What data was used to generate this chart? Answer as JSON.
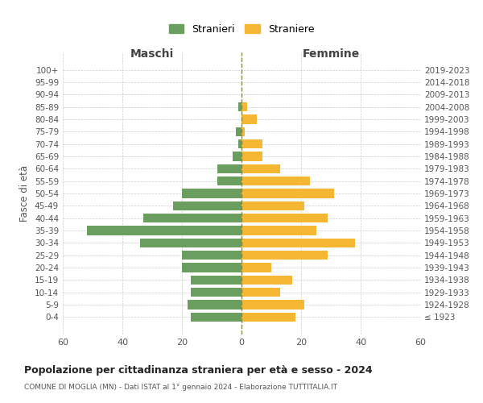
{
  "age_groups": [
    "100+",
    "95-99",
    "90-94",
    "85-89",
    "80-84",
    "75-79",
    "70-74",
    "65-69",
    "60-64",
    "55-59",
    "50-54",
    "45-49",
    "40-44",
    "35-39",
    "30-34",
    "25-29",
    "20-24",
    "15-19",
    "10-14",
    "5-9",
    "0-4"
  ],
  "birth_years": [
    "≤ 1923",
    "1924-1928",
    "1929-1933",
    "1934-1938",
    "1939-1943",
    "1944-1948",
    "1949-1953",
    "1954-1958",
    "1959-1963",
    "1964-1968",
    "1969-1973",
    "1974-1978",
    "1979-1983",
    "1984-1988",
    "1989-1993",
    "1994-1998",
    "1999-2003",
    "2004-2008",
    "2009-2013",
    "2014-2018",
    "2019-2023"
  ],
  "maschi": [
    0,
    0,
    0,
    1,
    0,
    2,
    1,
    3,
    8,
    8,
    20,
    23,
    33,
    52,
    34,
    20,
    20,
    17,
    17,
    18,
    17
  ],
  "femmine": [
    0,
    0,
    0,
    2,
    5,
    1,
    7,
    7,
    13,
    23,
    31,
    21,
    29,
    25,
    38,
    29,
    10,
    17,
    13,
    21,
    18
  ],
  "male_color": "#6a9e5e",
  "female_color": "#f5b731",
  "background_color": "#ffffff",
  "grid_color": "#cccccc",
  "title": "Popolazione per cittadinanza straniera per età e sesso - 2024",
  "subtitle": "COMUNE DI MOGLIA (MN) - Dati ISTAT al 1° gennaio 2024 - Elaborazione TUTTITALIA.IT",
  "xlabel_left": "Maschi",
  "xlabel_right": "Femmine",
  "ylabel_left": "Fasce di età",
  "legend_stranieri": "Stranieri",
  "legend_straniere": "Straniere",
  "xlim": 60
}
